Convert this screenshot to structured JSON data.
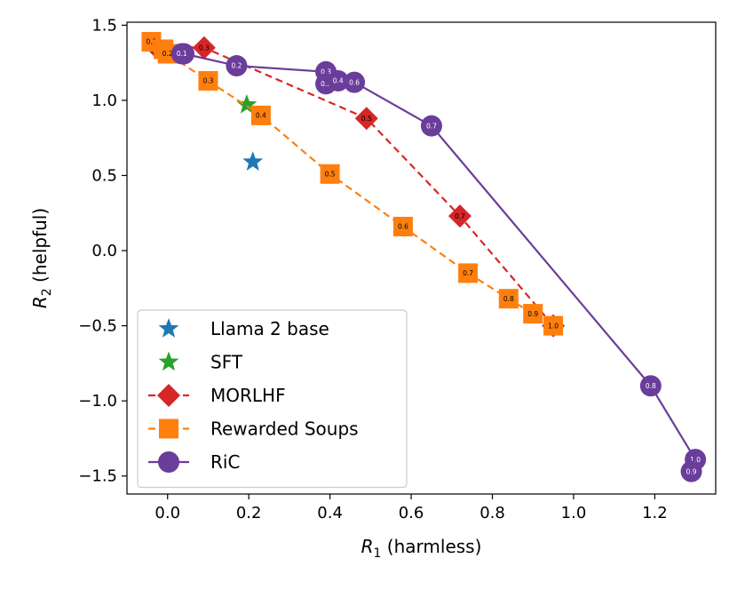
{
  "chart_data": {
    "type": "line",
    "xlabel": {
      "var": "R",
      "sub": "1",
      "rest": " (harmless)"
    },
    "ylabel": {
      "var": "R",
      "sub": "2",
      "rest": " (helpful)"
    },
    "xlim": [
      -0.1,
      1.35
    ],
    "ylim": [
      -1.62,
      1.52
    ],
    "xticks": [
      0.0,
      0.2,
      0.4,
      0.6,
      0.8,
      1.0,
      1.2
    ],
    "xtick_labels": [
      "0.0",
      "0.2",
      "0.4",
      "0.6",
      "0.8",
      "1.0",
      "1.2"
    ],
    "yticks": [
      -1.5,
      -1.0,
      -0.5,
      0.0,
      0.5,
      1.0,
      1.5
    ],
    "ytick_labels": [
      "−1.5",
      "−1.0",
      "−0.5",
      "0.0",
      "0.5",
      "1.0",
      "1.5"
    ],
    "grid": false,
    "legend_position": "lower-left",
    "series": [
      {
        "name": "Llama 2 base",
        "color": "#1f77b4",
        "marker": "star",
        "line": "none",
        "points": [
          {
            "x": 0.21,
            "y": 0.59
          }
        ]
      },
      {
        "name": "SFT",
        "color": "#2ca02c",
        "marker": "star",
        "line": "none",
        "points": [
          {
            "x": 0.195,
            "y": 0.97
          }
        ]
      },
      {
        "name": "MORLHF",
        "color": "#d62728",
        "marker": "diamond",
        "line": "dashed",
        "label_color": "#000000",
        "points": [
          {
            "x": -0.03,
            "y": 1.36,
            "label": "0.0"
          },
          {
            "x": 0.09,
            "y": 1.35,
            "label": "0.3"
          },
          {
            "x": 0.49,
            "y": 0.88,
            "label": "0.5"
          },
          {
            "x": 0.72,
            "y": 0.23,
            "label": "0.7"
          },
          {
            "x": 0.95,
            "y": -0.5,
            "label": "1.0"
          }
        ]
      },
      {
        "name": "Rewarded Soups",
        "color": "#ff7f0e",
        "marker": "square",
        "line": "dashed",
        "label_color": "#000000",
        "points": [
          {
            "x": -0.04,
            "y": 1.39,
            "label": "0.1"
          },
          {
            "x": -0.01,
            "y": 1.34,
            "label": "0.0"
          },
          {
            "x": 0.0,
            "y": 1.31,
            "label": "0.2"
          },
          {
            "x": 0.1,
            "y": 1.13,
            "label": "0.3"
          },
          {
            "x": 0.23,
            "y": 0.9,
            "label": "0.4"
          },
          {
            "x": 0.4,
            "y": 0.51,
            "label": "0.5"
          },
          {
            "x": 0.58,
            "y": 0.16,
            "label": "0.6"
          },
          {
            "x": 0.74,
            "y": -0.15,
            "label": "0.7"
          },
          {
            "x": 0.84,
            "y": -0.32,
            "label": "0.8"
          },
          {
            "x": 0.9,
            "y": -0.42,
            "label": "0.9"
          },
          {
            "x": 0.95,
            "y": -0.5,
            "label": "1.0"
          }
        ]
      },
      {
        "name": "RiC",
        "color": "#6a3d9a",
        "marker": "circle",
        "line": "solid",
        "label_color": "#ffffff",
        "points": [
          {
            "x": 0.04,
            "y": 1.31,
            "label": "0.0"
          },
          {
            "x": 0.17,
            "y": 1.23,
            "label": "0.2"
          },
          {
            "x": 0.39,
            "y": 1.19,
            "label": "0.3"
          },
          {
            "x": 0.46,
            "y": 1.12,
            "label": "0.6"
          },
          {
            "x": 0.65,
            "y": 0.83,
            "label": "0.7"
          },
          {
            "x": 1.19,
            "y": -0.9,
            "label": "0.8"
          },
          {
            "x": 1.3,
            "y": -1.39,
            "label": "1.0"
          }
        ],
        "extra_points": [
          {
            "x": 0.39,
            "y": 1.11,
            "label": "0.5"
          },
          {
            "x": 0.42,
            "y": 1.13,
            "label": "0.4"
          },
          {
            "x": 1.29,
            "y": -1.47,
            "label": "0.9"
          },
          {
            "x": 0.035,
            "y": 1.31,
            "label": "0.1"
          }
        ]
      }
    ]
  }
}
